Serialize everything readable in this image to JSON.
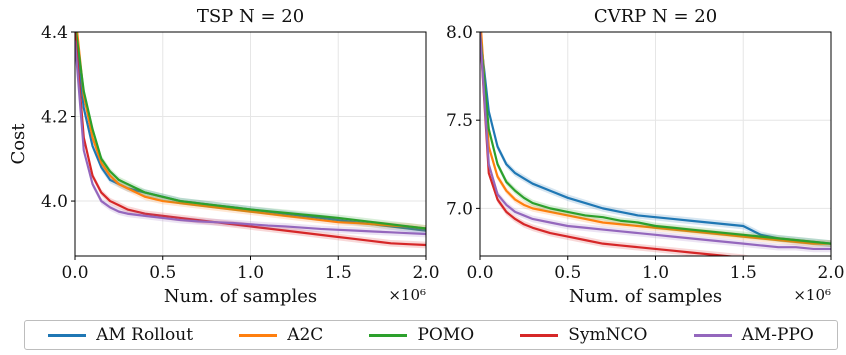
{
  "chart_data": [
    {
      "type": "line",
      "title": "TSP  N = 20",
      "xlabel": "Num. of samples",
      "x_multiplier": "×10⁶",
      "ylabel": "Cost",
      "xlim": [
        0,
        2.0
      ],
      "ylim": [
        3.87,
        4.4
      ],
      "xticks": [
        "0.0",
        "0.5",
        "1.0",
        "1.5",
        "2.0"
      ],
      "yticks": [
        "4.0",
        "4.2",
        "4.4"
      ],
      "ytick_values": [
        4.0,
        4.2,
        4.4
      ],
      "grid": true,
      "x": [
        0,
        0.05,
        0.1,
        0.15,
        0.2,
        0.25,
        0.3,
        0.4,
        0.5,
        0.6,
        0.7,
        0.8,
        0.9,
        1.0,
        1.1,
        1.2,
        1.3,
        1.4,
        1.5,
        1.6,
        1.7,
        1.8,
        1.9,
        2.0
      ],
      "series": [
        {
          "name": "AM Rollout",
          "color": "#1f77b4",
          "values": [
            4.4,
            4.22,
            4.13,
            4.08,
            4.05,
            4.04,
            4.03,
            4.02,
            4.01,
            4.0,
            3.995,
            3.99,
            3.985,
            3.98,
            3.975,
            3.97,
            3.965,
            3.96,
            3.955,
            3.95,
            3.945,
            3.94,
            3.935,
            3.93
          ]
        },
        {
          "name": "A2C",
          "color": "#ff7f0e",
          "values": [
            4.45,
            4.25,
            4.15,
            4.09,
            4.06,
            4.04,
            4.03,
            4.01,
            4.0,
            3.995,
            3.99,
            3.985,
            3.98,
            3.975,
            3.97,
            3.965,
            3.96,
            3.955,
            3.95,
            3.948,
            3.945,
            3.942,
            3.94,
            3.935
          ]
        },
        {
          "name": "POMO",
          "color": "#2ca02c",
          "values": [
            4.42,
            4.26,
            4.17,
            4.1,
            4.07,
            4.05,
            4.04,
            4.02,
            4.01,
            4.0,
            3.995,
            3.99,
            3.985,
            3.98,
            3.976,
            3.972,
            3.968,
            3.964,
            3.96,
            3.955,
            3.95,
            3.945,
            3.94,
            3.935
          ]
        },
        {
          "name": "SymNCO",
          "color": "#d62728",
          "values": [
            4.4,
            4.15,
            4.06,
            4.02,
            4.0,
            3.99,
            3.98,
            3.97,
            3.965,
            3.96,
            3.955,
            3.95,
            3.945,
            3.94,
            3.935,
            3.93,
            3.925,
            3.92,
            3.915,
            3.91,
            3.905,
            3.9,
            3.898,
            3.896
          ]
        },
        {
          "name": "AM-PPO",
          "color": "#9467bd",
          "values": [
            4.38,
            4.12,
            4.04,
            4.0,
            3.985,
            3.975,
            3.97,
            3.965,
            3.96,
            3.955,
            3.952,
            3.95,
            3.948,
            3.945,
            3.942,
            3.94,
            3.937,
            3.934,
            3.932,
            3.93,
            3.928,
            3.926,
            3.924,
            3.922
          ]
        }
      ]
    },
    {
      "type": "line",
      "title": "CVRP  N = 20",
      "xlabel": "Num. of samples",
      "x_multiplier": "×10⁶",
      "ylabel": "",
      "xlim": [
        0,
        2.0
      ],
      "ylim": [
        6.73,
        8.0
      ],
      "xticks": [
        "0.0",
        "0.5",
        "1.0",
        "1.5",
        "2.0"
      ],
      "yticks": [
        "7.0",
        "7.5",
        "8.0"
      ],
      "ytick_values": [
        7.0,
        7.5,
        8.0
      ],
      "grid": true,
      "x": [
        0,
        0.05,
        0.1,
        0.15,
        0.2,
        0.25,
        0.3,
        0.4,
        0.5,
        0.6,
        0.7,
        0.8,
        0.9,
        1.0,
        1.1,
        1.2,
        1.3,
        1.4,
        1.5,
        1.6,
        1.7,
        1.8,
        1.9,
        2.0
      ],
      "series": [
        {
          "name": "AM Rollout",
          "color": "#1f77b4",
          "values": [
            8.0,
            7.55,
            7.35,
            7.25,
            7.2,
            7.17,
            7.14,
            7.1,
            7.06,
            7.03,
            7.0,
            6.98,
            6.96,
            6.95,
            6.94,
            6.93,
            6.92,
            6.91,
            6.9,
            6.85,
            6.83,
            6.82,
            6.81,
            6.8
          ]
        },
        {
          "name": "A2C",
          "color": "#ff7f0e",
          "values": [
            8.1,
            7.35,
            7.18,
            7.1,
            7.05,
            7.02,
            7.0,
            6.98,
            6.96,
            6.94,
            6.92,
            6.91,
            6.9,
            6.89,
            6.88,
            6.87,
            6.86,
            6.85,
            6.84,
            6.83,
            6.82,
            6.81,
            6.8,
            6.8
          ]
        },
        {
          "name": "POMO",
          "color": "#2ca02c",
          "values": [
            8.0,
            7.45,
            7.25,
            7.15,
            7.1,
            7.06,
            7.03,
            7.0,
            6.98,
            6.96,
            6.95,
            6.93,
            6.92,
            6.9,
            6.89,
            6.88,
            6.87,
            6.86,
            6.85,
            6.84,
            6.83,
            6.82,
            6.81,
            6.8
          ]
        },
        {
          "name": "SymNCO",
          "color": "#d62728",
          "values": [
            8.0,
            7.2,
            7.05,
            6.98,
            6.94,
            6.91,
            6.89,
            6.86,
            6.84,
            6.82,
            6.8,
            6.79,
            6.78,
            6.77,
            6.76,
            6.75,
            6.74,
            6.73,
            6.72,
            6.7,
            6.68,
            6.67,
            6.665,
            6.66
          ]
        },
        {
          "name": "AM-PPO",
          "color": "#9467bd",
          "values": [
            8.0,
            7.25,
            7.08,
            7.02,
            6.98,
            6.96,
            6.94,
            6.92,
            6.9,
            6.89,
            6.88,
            6.87,
            6.86,
            6.85,
            6.84,
            6.83,
            6.82,
            6.81,
            6.8,
            6.79,
            6.78,
            6.78,
            6.77,
            6.77
          ]
        }
      ]
    }
  ],
  "legend": [
    {
      "label": "AM Rollout",
      "color": "#1f77b4"
    },
    {
      "label": "A2C",
      "color": "#ff7f0e"
    },
    {
      "label": "POMO",
      "color": "#2ca02c"
    },
    {
      "label": "SymNCO",
      "color": "#d62728"
    },
    {
      "label": "AM-PPO",
      "color": "#9467bd"
    }
  ]
}
